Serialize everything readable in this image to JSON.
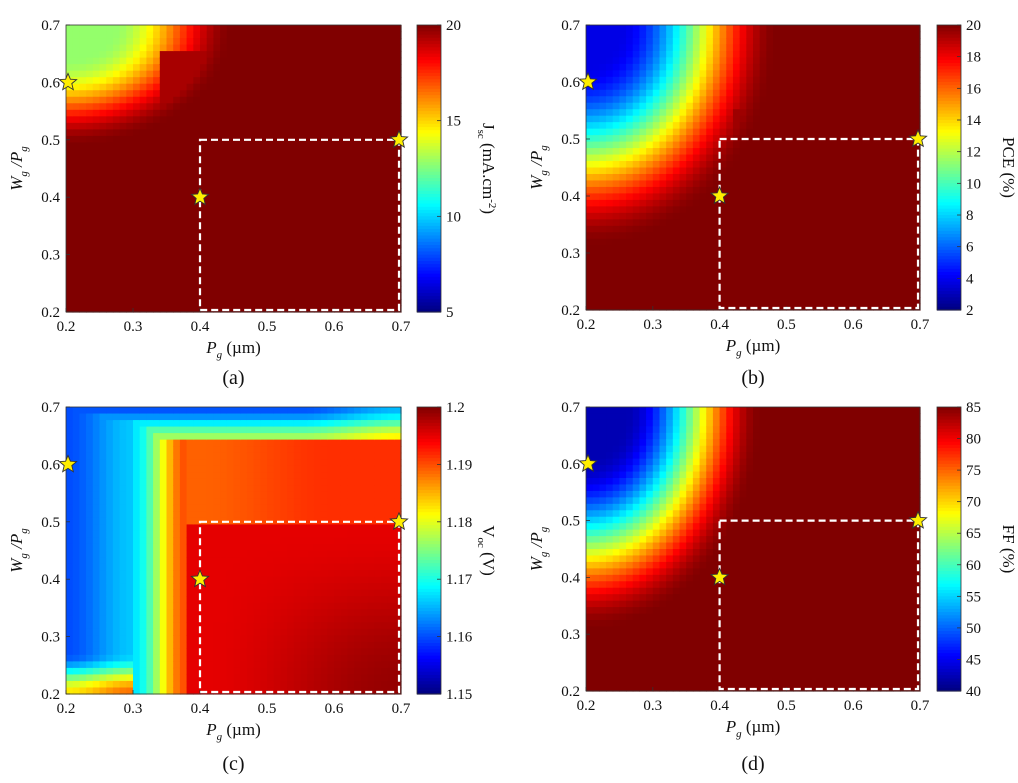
{
  "panels_meta": {
    "x_axis_label": "P",
    "x_axis_sub": "g",
    "x_axis_unit": " (µm)",
    "y_axis_label_1": "W",
    "y_axis_sub_1": "g",
    "y_axis_label_2": " /P",
    "y_axis_sub_2": "g"
  },
  "chart_data": [
    {
      "type": "heatmap",
      "panel_label": "(a)",
      "x_ticks": [
        "0.2",
        "0.3",
        "0.4",
        "0.5",
        "0.6",
        "0.7"
      ],
      "y_ticks": [
        "0.2",
        "0.3",
        "0.4",
        "0.5",
        "0.6",
        "0.7"
      ],
      "xlim": [
        0.2,
        0.7
      ],
      "ylim": [
        0.2,
        0.7
      ],
      "colorbar": {
        "label_main": "J",
        "label_sub": "sc",
        "label_rest": " (mA.cm",
        "label_sup": "-2",
        "label_end": ")",
        "ticks": [
          "5",
          "10",
          "15",
          "20"
        ],
        "range": [
          5,
          20
        ],
        "colormap": "jet"
      },
      "stars": [
        [
          0.2,
          0.6
        ],
        [
          0.4,
          0.4
        ],
        [
          0.7,
          0.5
        ]
      ],
      "highlight_box": {
        "x": [
          0.4,
          0.7
        ],
        "y": [
          0.2,
          0.5
        ]
      },
      "field": "jsc"
    },
    {
      "type": "heatmap",
      "panel_label": "(b)",
      "x_ticks": [
        "0.2",
        "0.3",
        "0.4",
        "0.5",
        "0.6",
        "0.7"
      ],
      "y_ticks": [
        "0.2",
        "0.3",
        "0.4",
        "0.5",
        "0.6",
        "0.7"
      ],
      "xlim": [
        0.2,
        0.7
      ],
      "ylim": [
        0.2,
        0.7
      ],
      "colorbar": {
        "label_main": "PCE (%)",
        "label_sub": "",
        "label_rest": "",
        "label_sup": "",
        "label_end": "",
        "ticks": [
          "2",
          "4",
          "6",
          "8",
          "10",
          "12",
          "14",
          "16",
          "18",
          "20"
        ],
        "range": [
          2,
          20
        ],
        "colormap": "jet"
      },
      "stars": [
        [
          0.2,
          0.6
        ],
        [
          0.4,
          0.4
        ],
        [
          0.7,
          0.5
        ]
      ],
      "highlight_box": {
        "x": [
          0.4,
          0.7
        ],
        "y": [
          0.2,
          0.5
        ]
      },
      "field": "pce"
    },
    {
      "type": "heatmap",
      "panel_label": "(c)",
      "x_ticks": [
        "0.2",
        "0.3",
        "0.4",
        "0.5",
        "0.6",
        "0.7"
      ],
      "y_ticks": [
        "0.2",
        "0.3",
        "0.4",
        "0.5",
        "0.6",
        "0.7"
      ],
      "xlim": [
        0.2,
        0.7
      ],
      "ylim": [
        0.2,
        0.7
      ],
      "colorbar": {
        "label_main": "V",
        "label_sub": "oc",
        "label_rest": " (V)",
        "label_sup": "",
        "label_end": "",
        "ticks": [
          "1.15",
          "1.16",
          "1.17",
          "1.18",
          "1.19",
          "1.2"
        ],
        "range": [
          1.15,
          1.2
        ],
        "colormap": "jet"
      },
      "stars": [
        [
          0.2,
          0.6
        ],
        [
          0.4,
          0.4
        ],
        [
          0.7,
          0.5
        ]
      ],
      "highlight_box": {
        "x": [
          0.4,
          0.7
        ],
        "y": [
          0.2,
          0.5
        ]
      },
      "field": "voc"
    },
    {
      "type": "heatmap",
      "panel_label": "(d)",
      "x_ticks": [
        "0.2",
        "0.3",
        "0.4",
        "0.5",
        "0.6",
        "0.7"
      ],
      "y_ticks": [
        "0.2",
        "0.3",
        "0.4",
        "0.5",
        "0.6",
        "0.7"
      ],
      "xlim": [
        0.2,
        0.7
      ],
      "ylim": [
        0.2,
        0.7
      ],
      "colorbar": {
        "label_main": "FF (%)",
        "label_sub": "",
        "label_rest": "",
        "label_sup": "",
        "label_end": "",
        "ticks": [
          "40",
          "45",
          "50",
          "55",
          "60",
          "65",
          "70",
          "75",
          "80",
          "85"
        ],
        "range": [
          40,
          85
        ],
        "colormap": "jet"
      },
      "stars": [
        [
          0.2,
          0.6
        ],
        [
          0.4,
          0.4
        ],
        [
          0.7,
          0.5
        ]
      ],
      "highlight_box": {
        "x": [
          0.4,
          0.7
        ],
        "y": [
          0.2,
          0.5
        ]
      },
      "field": "ff"
    }
  ]
}
